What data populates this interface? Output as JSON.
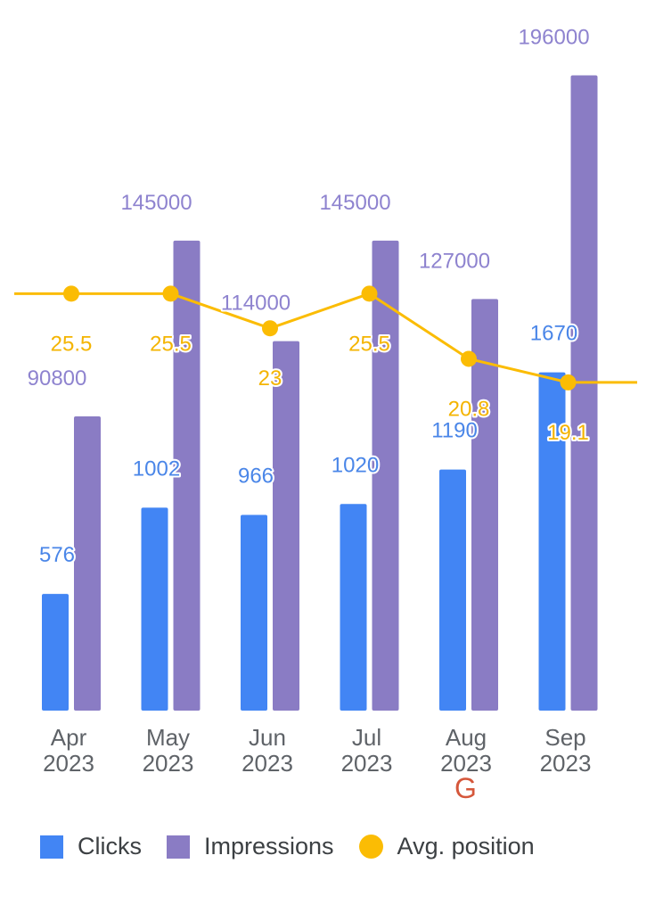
{
  "chart_data": {
    "type": "bar",
    "categories": [
      [
        "Apr",
        "2023"
      ],
      [
        "May",
        "2023"
      ],
      [
        "Jun",
        "2023"
      ],
      [
        "Jul",
        "2023"
      ],
      [
        "Aug",
        "2023"
      ],
      [
        "Sep",
        "2023"
      ]
    ],
    "series": [
      {
        "name": "Clicks",
        "type": "bar",
        "color": "#4285f4",
        "label_color": "#4a86e8",
        "values": [
          576,
          1002,
          966,
          1020,
          1190,
          1670
        ],
        "axis_max": 3200
      },
      {
        "name": "Impressions",
        "type": "bar",
        "color": "#8a7cc4",
        "label_color": "#8e83cf",
        "values": [
          90800,
          145000,
          114000,
          145000,
          127000,
          196000
        ],
        "axis_max": 200000
      },
      {
        "name": "Avg. position",
        "type": "line",
        "color": "#fbbc04",
        "label_color": "#f4b400",
        "values": [
          25.5,
          25.5,
          23,
          25.5,
          20.8,
          19.1
        ],
        "labels": [
          "25.5",
          "25.5",
          "23",
          "25.5",
          "20.8",
          "19.1"
        ],
        "axis_range": [
          0,
          45
        ]
      }
    ],
    "title": "",
    "xlabel": "",
    "ylabel": "",
    "grid": false,
    "legend_position": "bottom"
  },
  "legend": {
    "items": [
      {
        "label": "Clicks",
        "color": "#4285f4",
        "shape": "square"
      },
      {
        "label": "Impressions",
        "color": "#8a7cc4",
        "shape": "square"
      },
      {
        "label": "Avg. position",
        "color": "#fbbc04",
        "shape": "circle"
      }
    ]
  },
  "watermark": {
    "text": "G",
    "color": "#d5573b"
  }
}
